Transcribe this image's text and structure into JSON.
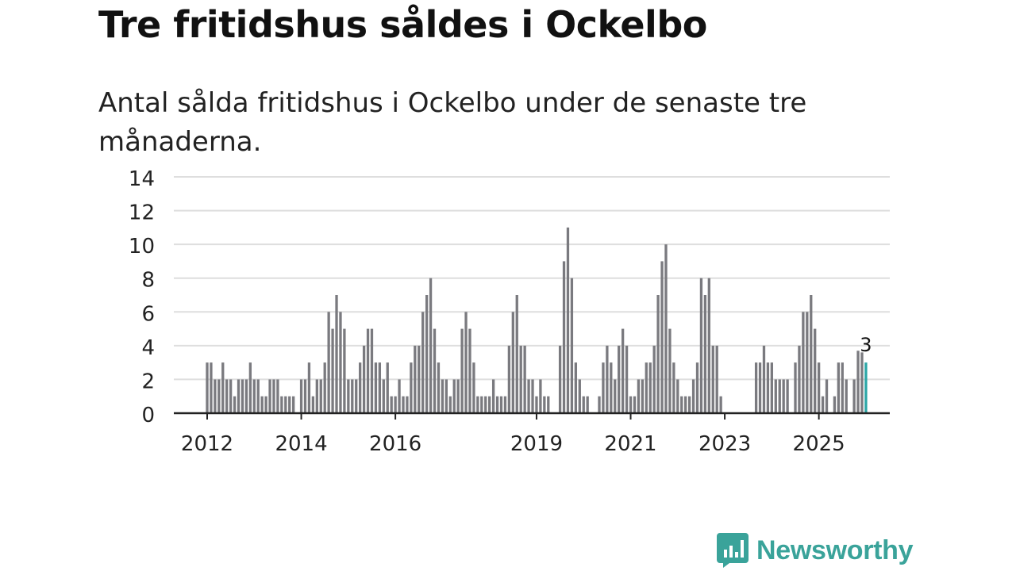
{
  "title": "Tre fritidshus såldes i Ockelbo",
  "subtitle": "Antal sålda fritidshus i Ockelbo under de senaste tre månaderna.",
  "brand": {
    "name": "Newsworthy",
    "icon": "newsworthy-chart-icon",
    "color": "#3aa39a"
  },
  "colors": {
    "bar": "#7a7a7f",
    "highlight": "#2ba6a6",
    "grid": "#dedede",
    "axis": "#222222"
  },
  "chart_data": {
    "type": "bar",
    "title": "Tre fritidshus såldes i Ockelbo",
    "xlabel": "",
    "ylabel": "",
    "ylim": [
      0,
      14
    ],
    "yticks": [
      0,
      2,
      4,
      6,
      8,
      10,
      12,
      14
    ],
    "x_tick_labels": [
      "2012",
      "2014",
      "2016",
      "2019",
      "2021",
      "2023",
      "2025"
    ],
    "x_tick_positions": [
      0,
      24,
      48,
      84,
      108,
      132,
      156
    ],
    "start": "2012-01",
    "last_label": "3",
    "values": [
      3,
      3,
      2,
      2,
      3,
      2,
      2,
      1,
      2,
      2,
      2,
      3,
      2,
      2,
      1,
      1,
      2,
      2,
      2,
      1,
      1,
      1,
      1,
      0,
      2,
      2,
      3,
      1,
      2,
      2,
      3,
      6,
      5,
      7,
      6,
      5,
      2,
      2,
      2,
      3,
      4,
      5,
      5,
      3,
      3,
      2,
      3,
      1,
      1,
      2,
      1,
      1,
      3,
      4,
      4,
      6,
      7,
      8,
      5,
      3,
      2,
      2,
      1,
      2,
      2,
      5,
      6,
      5,
      3,
      1,
      1,
      1,
      1,
      2,
      1,
      1,
      1,
      4,
      6,
      7,
      4,
      4,
      2,
      2,
      1,
      2,
      1,
      1,
      0,
      0,
      4,
      9,
      11,
      8,
      3,
      2,
      1,
      1,
      0,
      0,
      1,
      3,
      4,
      3,
      2,
      4,
      5,
      4,
      1,
      1,
      2,
      2,
      3,
      3,
      4,
      7,
      9,
      10,
      5,
      3,
      2,
      1,
      1,
      1,
      2,
      3,
      8,
      7,
      8,
      4,
      4,
      1,
      0,
      0,
      0,
      0,
      0,
      0,
      0,
      0,
      3,
      3,
      4,
      3,
      3,
      2,
      2,
      2,
      2,
      0,
      3,
      4,
      6,
      6,
      7,
      5,
      3,
      1,
      2,
      0,
      1,
      3,
      3,
      2,
      0,
      2,
      3.7,
      3.6,
      3
    ]
  }
}
